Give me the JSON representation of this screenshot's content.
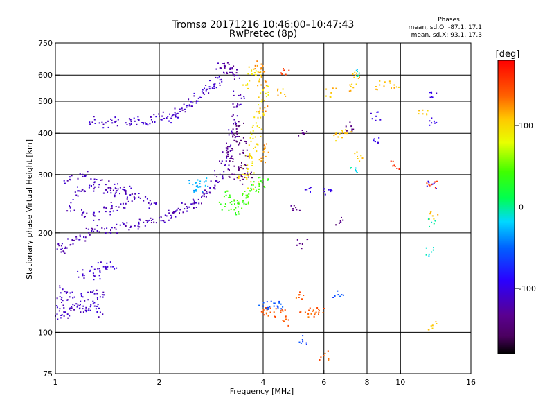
{
  "chart_data": {
    "type": "scatter",
    "title": "Tromsø 20171216 10:46:00–10:47:43",
    "subtitle": "RwPretec (8p)",
    "xlabel": "Frequency [MHz]",
    "ylabel": "Stationary phase Virtual Height [km]",
    "x_scale": "log",
    "y_scale": "log",
    "xlim": [
      1,
      16
    ],
    "ylim": [
      75,
      750
    ],
    "x_ticks": [
      1,
      2,
      4,
      6,
      8,
      10,
      16
    ],
    "x_ticklabels": [
      "1",
      "2",
      "4",
      "6",
      "8",
      "10",
      "16"
    ],
    "y_ticks": [
      75,
      100,
      200,
      300,
      400,
      500,
      600,
      750
    ],
    "y_ticklabels": [
      "75",
      "100",
      "200",
      "300",
      "400",
      "500",
      "600",
      "750"
    ],
    "x_gridlines": [
      1,
      2,
      4,
      6,
      8,
      10,
      16
    ],
    "y_gridlines": [
      100,
      200,
      300,
      400,
      500,
      600
    ],
    "grid": true,
    "legend_position": "top-right",
    "legend": {
      "title": "Phases",
      "line1": "mean, sd,O: -87.1, 17.1",
      "line2": "mean, sd,X:  93.1, 17.3"
    },
    "colorbar": {
      "label": "[deg]",
      "range": [
        -180,
        180
      ],
      "ticks": [
        100,
        0,
        -100
      ],
      "ticklabels": [
        "100",
        "0",
        "-100"
      ],
      "colormap": "rainbow (black → violet → blue → cyan → green → yellow → orange → red)"
    },
    "series": [
      {
        "traces": [
          {
            "phase": -112,
            "points": [
              [
                1.0,
                112
              ],
              [
                1.03,
                118
              ],
              [
                1.06,
                112
              ],
              [
                1.05,
                125
              ],
              [
                1.1,
                118
              ],
              [
                1.15,
                122
              ],
              [
                1.2,
                118
              ],
              [
                1.25,
                118
              ],
              [
                1.3,
                120
              ],
              [
                1.35,
                115
              ],
              [
                1.35,
                128
              ],
              [
                1.28,
                132
              ],
              [
                1.2,
                128
              ],
              [
                1.1,
                128
              ],
              [
                1.05,
                135
              ]
            ]
          },
          {
            "phase": -108,
            "points": [
              [
                1.2,
                150
              ],
              [
                1.3,
                155
              ],
              [
                1.38,
                158
              ],
              [
                1.45,
                158
              ],
              [
                1.3,
                148
              ]
            ]
          },
          {
            "phase": -118,
            "points": [
              [
                1.02,
                185
              ],
              [
                1.04,
                175
              ],
              [
                1.08,
                180
              ],
              [
                1.12,
                190
              ],
              [
                1.18,
                195
              ],
              [
                1.25,
                200
              ],
              [
                1.3,
                205
              ],
              [
                1.4,
                200
              ],
              [
                1.5,
                205
              ],
              [
                1.6,
                210
              ],
              [
                1.7,
                210
              ],
              [
                1.8,
                215
              ],
              [
                1.9,
                218
              ],
              [
                2.0,
                222
              ],
              [
                2.1,
                225
              ],
              [
                2.2,
                230
              ],
              [
                2.3,
                235
              ],
              [
                2.4,
                240
              ],
              [
                2.5,
                245
              ],
              [
                2.6,
                252
              ],
              [
                2.7,
                258
              ],
              [
                2.8,
                265
              ],
              [
                2.9,
                278
              ],
              [
                3.0,
                300
              ],
              [
                3.1,
                320
              ],
              [
                3.15,
                340
              ],
              [
                3.2,
                365
              ],
              [
                3.25,
                400
              ],
              [
                3.3,
                440
              ],
              [
                3.35,
                480
              ],
              [
                3.4,
                520
              ]
            ]
          },
          {
            "phase": -115,
            "points": [
              [
                1.1,
                240
              ],
              [
                1.15,
                260
              ],
              [
                1.2,
                270
              ],
              [
                1.3,
                275
              ],
              [
                1.4,
                270
              ],
              [
                1.5,
                265
              ],
              [
                1.6,
                262
              ],
              [
                1.7,
                255
              ],
              [
                1.8,
                250
              ],
              [
                1.9,
                245
              ],
              [
                1.2,
                230
              ],
              [
                1.3,
                225
              ],
              [
                1.4,
                232
              ],
              [
                1.5,
                240
              ],
              [
                1.6,
                245
              ],
              [
                1.1,
                290
              ],
              [
                1.2,
                300
              ],
              [
                1.3,
                285
              ],
              [
                1.4,
                280
              ],
              [
                1.5,
                272
              ],
              [
                1.6,
                268
              ]
            ]
          },
          {
            "phase": -110,
            "points": [
              [
                1.3,
                440
              ],
              [
                1.4,
                430
              ],
              [
                1.5,
                435
              ],
              [
                1.6,
                430
              ],
              [
                1.7,
                435
              ],
              [
                1.8,
                430
              ],
              [
                1.9,
                440
              ],
              [
                2.0,
                450
              ],
              [
                2.1,
                445
              ],
              [
                2.2,
                455
              ],
              [
                2.3,
                465
              ],
              [
                2.4,
                480
              ],
              [
                2.5,
                495
              ],
              [
                2.6,
                510
              ],
              [
                2.7,
                525
              ],
              [
                2.8,
                545
              ],
              [
                2.9,
                565
              ],
              [
                3.0,
                580
              ]
            ]
          },
          {
            "phase": -125,
            "points": [
              [
                3.0,
                630
              ],
              [
                3.1,
                640
              ],
              [
                3.2,
                625
              ],
              [
                3.25,
                610
              ],
              [
                3.3,
                600
              ]
            ]
          },
          {
            "phase": -145,
            "points": [
              [
                3.2,
                330
              ],
              [
                3.25,
                360
              ],
              [
                3.3,
                380
              ],
              [
                3.35,
                400
              ],
              [
                3.4,
                420
              ],
              [
                3.45,
                380
              ],
              [
                3.5,
                350
              ],
              [
                3.55,
                320
              ],
              [
                3.6,
                300
              ],
              [
                3.3,
                300
              ],
              [
                3.4,
                310
              ],
              [
                3.5,
                290
              ]
            ]
          },
          {
            "phase": -30,
            "points": [
              [
                2.5,
                280
              ],
              [
                2.6,
                275
              ],
              [
                2.7,
                285
              ],
              [
                2.55,
                270
              ]
            ]
          },
          {
            "phase": 40,
            "points": [
              [
                3.2,
                260
              ],
              [
                3.3,
                250
              ],
              [
                3.4,
                245
              ],
              [
                3.5,
                250
              ],
              [
                3.6,
                260
              ],
              [
                3.7,
                270
              ],
              [
                3.8,
                275
              ],
              [
                3.9,
                280
              ],
              [
                4.0,
                290
              ],
              [
                3.1,
                240
              ],
              [
                3.3,
                235
              ]
            ]
          },
          {
            "phase": 95,
            "points": [
              [
                3.5,
                300
              ],
              [
                3.6,
                320
              ],
              [
                3.7,
                340
              ],
              [
                3.75,
                360
              ],
              [
                3.8,
                390
              ],
              [
                3.85,
                420
              ],
              [
                3.9,
                460
              ],
              [
                3.95,
                500
              ],
              [
                4.0,
                540
              ],
              [
                3.8,
                600
              ],
              [
                3.7,
                620
              ],
              [
                3.6,
                560
              ],
              [
                3.65,
                300
              ],
              [
                3.75,
                280
              ]
            ]
          },
          {
            "phase": 120,
            "points": [
              [
                3.85,
                640
              ],
              [
                3.9,
                610
              ],
              [
                3.95,
                560
              ],
              [
                4.0,
                470
              ],
              [
                4.05,
                360
              ],
              [
                3.95,
                330
              ]
            ]
          },
          {
            "phase": 140,
            "points": [
              [
                4.0,
                115
              ],
              [
                4.2,
                115
              ],
              [
                4.5,
                115
              ],
              [
                4.6,
                108
              ],
              [
                5.1,
                130
              ],
              [
                5.3,
                115
              ],
              [
                5.7,
                115
              ],
              [
                5.8,
                115
              ],
              [
                6.0,
                85
              ]
            ]
          },
          {
            "phase": -60,
            "points": [
              [
                4.0,
                120
              ],
              [
                4.3,
                120
              ],
              [
                4.4,
                120
              ],
              [
                5.2,
                95
              ],
              [
                6.6,
                130
              ]
            ]
          },
          {
            "phase": -140,
            "points": [
              [
                5.2,
                400
              ],
              [
                5.0,
                235
              ],
              [
                5.2,
                185
              ],
              [
                6.7,
                215
              ],
              [
                7.2,
                420
              ]
            ]
          },
          {
            "phase": -100,
            "points": [
              [
                5.3,
                270
              ],
              [
                6.2,
                270
              ],
              [
                8.5,
                450
              ],
              [
                8.6,
                375
              ],
              [
                12.3,
                530
              ],
              [
                12.3,
                430
              ],
              [
                12.3,
                280
              ]
            ]
          },
          {
            "phase": 110,
            "points": [
              [
                4.5,
                530
              ],
              [
                6.3,
                530
              ],
              [
                6.6,
                390
              ],
              [
                7.3,
                550
              ],
              [
                8.7,
                560
              ],
              [
                9.6,
                560
              ],
              [
                11.6,
                470
              ],
              [
                12.4,
                225
              ],
              [
                12.4,
                105
              ],
              [
                7.0,
                400
              ],
              [
                7.5,
                340
              ],
              [
                7.4,
                600
              ]
            ]
          },
          {
            "phase": 160,
            "points": [
              [
                9.6,
                320
              ],
              [
                12.3,
                280
              ],
              [
                4.6,
                620
              ]
            ]
          },
          {
            "phase": -10,
            "points": [
              [
                7.5,
                615
              ],
              [
                7.4,
                310
              ],
              [
                12.3,
                215
              ],
              [
                12.3,
                175
              ]
            ]
          }
        ]
      }
    ]
  }
}
